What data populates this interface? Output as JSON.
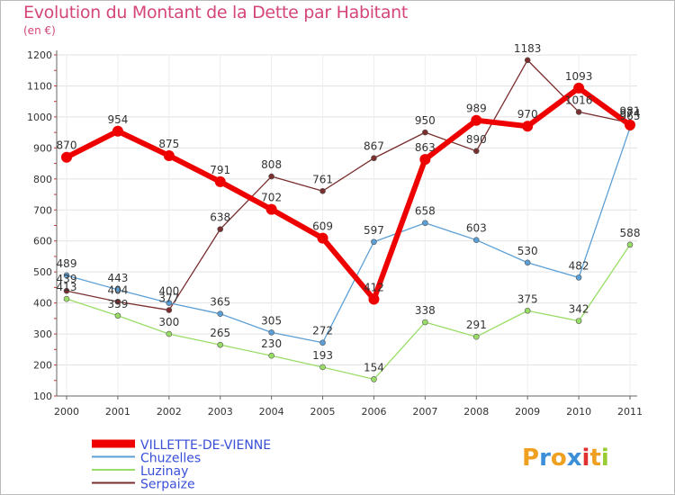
{
  "header": {
    "title": "Evolution du Montant de la Dette par Habitant",
    "unit": "(en €)"
  },
  "branding": {
    "logo_text": "Proxiti"
  },
  "chart_data": {
    "type": "line",
    "title": "Evolution du Montant de la Dette par Habitant",
    "ylabel": "(en €)",
    "xlabel": "",
    "ylim": [
      100,
      1200
    ],
    "y_ticks": [
      100,
      200,
      300,
      400,
      500,
      600,
      700,
      800,
      900,
      1000,
      1100,
      1200
    ],
    "grid": true,
    "legend_position": "bottom-left",
    "categories": [
      "2000",
      "2001",
      "2002",
      "2003",
      "2004",
      "2005",
      "2006",
      "2007",
      "2008",
      "2009",
      "2010",
      "2011"
    ],
    "series": [
      {
        "name": "VILLETTE-DE-VIENNE",
        "color": "#ee0000",
        "values": [
          870,
          954,
          875,
          791,
          702,
          609,
          412,
          863,
          989,
          970,
          1093,
          974
        ]
      },
      {
        "name": "Chuzelles",
        "color": "#5b9fd6",
        "values": [
          489,
          443,
          400,
          365,
          305,
          272,
          597,
          658,
          603,
          530,
          482,
          965
        ]
      },
      {
        "name": "Luzinay",
        "color": "#99dd66",
        "values": [
          413,
          359,
          300,
          265,
          230,
          193,
          154,
          338,
          291,
          375,
          342,
          588
        ]
      },
      {
        "name": "Serpaize",
        "color": "#7a2e2e",
        "values": [
          439,
          404,
          377,
          638,
          808,
          761,
          867,
          950,
          890,
          1183,
          1016,
          981
        ]
      }
    ]
  }
}
